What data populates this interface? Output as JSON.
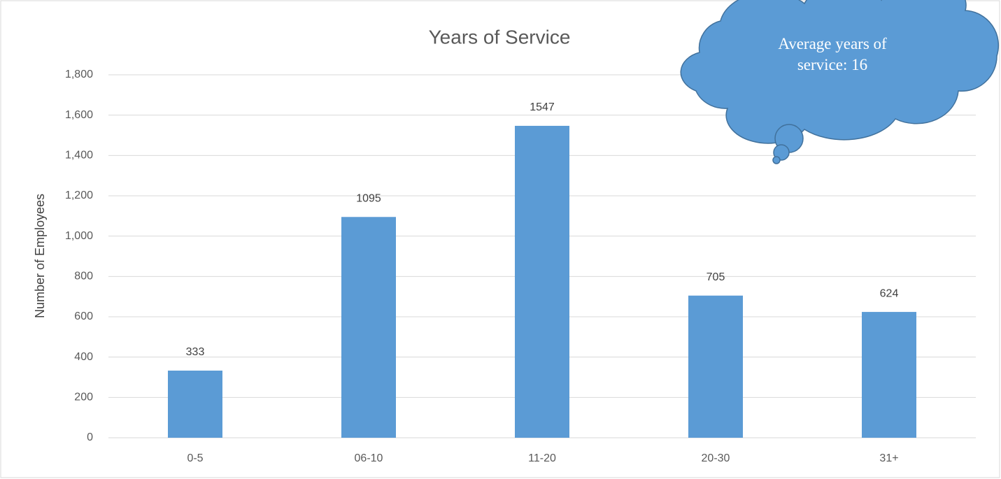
{
  "chart_data": {
    "type": "bar",
    "title": "Years of Service",
    "y_label": "Number of Employees",
    "categories": [
      "0-5",
      "06-10",
      "11-20",
      "20-30",
      "31+"
    ],
    "values": [
      333,
      1095,
      1547,
      705,
      624
    ],
    "color": "#5b9bd5",
    "ylim": [
      0,
      1800
    ],
    "yticks": [
      0,
      200,
      400,
      600,
      800,
      {
        "value": 1000,
        "label": "1,000"
      },
      {
        "value": 1200,
        "label": "1,200"
      },
      {
        "value": 1400,
        "label": "1,400"
      },
      {
        "value": 1600,
        "label": "1,600"
      },
      {
        "value": 1800,
        "label": "1,800"
      }
    ],
    "grid": true,
    "data_labels": true,
    "annotation": "Average years of service:  16"
  }
}
